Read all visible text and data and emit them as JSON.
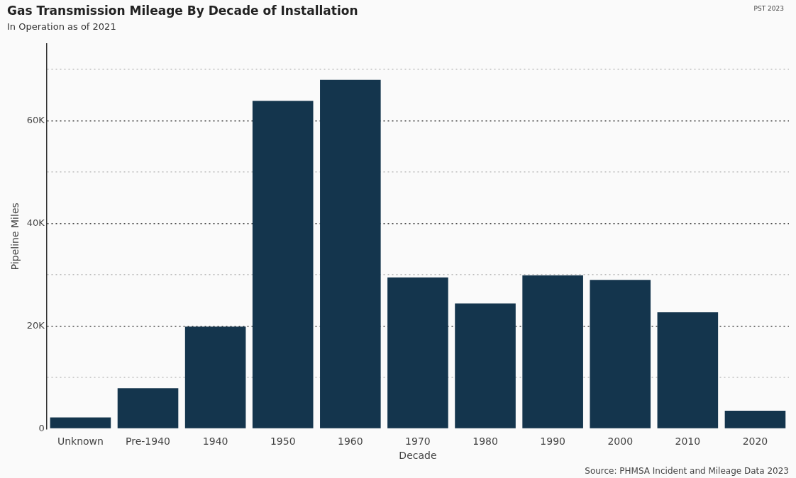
{
  "chart_data": {
    "type": "bar",
    "title": "Gas Transmission Mileage By Decade of Installation",
    "subtitle": "In Operation as of 2021",
    "xlabel": "Decade",
    "ylabel": "Pipeline Miles",
    "categories": [
      "Unknown",
      "Pre-1940",
      "1940",
      "1950",
      "1960",
      "1970",
      "1980",
      "1990",
      "2000",
      "2010",
      "2020"
    ],
    "values": [
      2200,
      7900,
      19900,
      63900,
      68000,
      29500,
      24400,
      29900,
      29000,
      22700,
      3500
    ],
    "color": "#14354d",
    "ylim": [
      0,
      75000
    ],
    "yticks": [
      0,
      {
        "value": 10000,
        "label": null
      },
      {
        "value": 20000,
        "label": "20K"
      },
      {
        "value": 30000,
        "label": null
      },
      {
        "value": 40000,
        "label": "40K"
      },
      {
        "value": 50000,
        "label": null
      },
      {
        "value": 60000,
        "label": "60K"
      },
      {
        "value": 70000,
        "label": null
      }
    ],
    "grid": "y",
    "annotations": [
      "PST 2023",
      "Source: PHMSA Incident and Mileage Data 2023"
    ]
  }
}
